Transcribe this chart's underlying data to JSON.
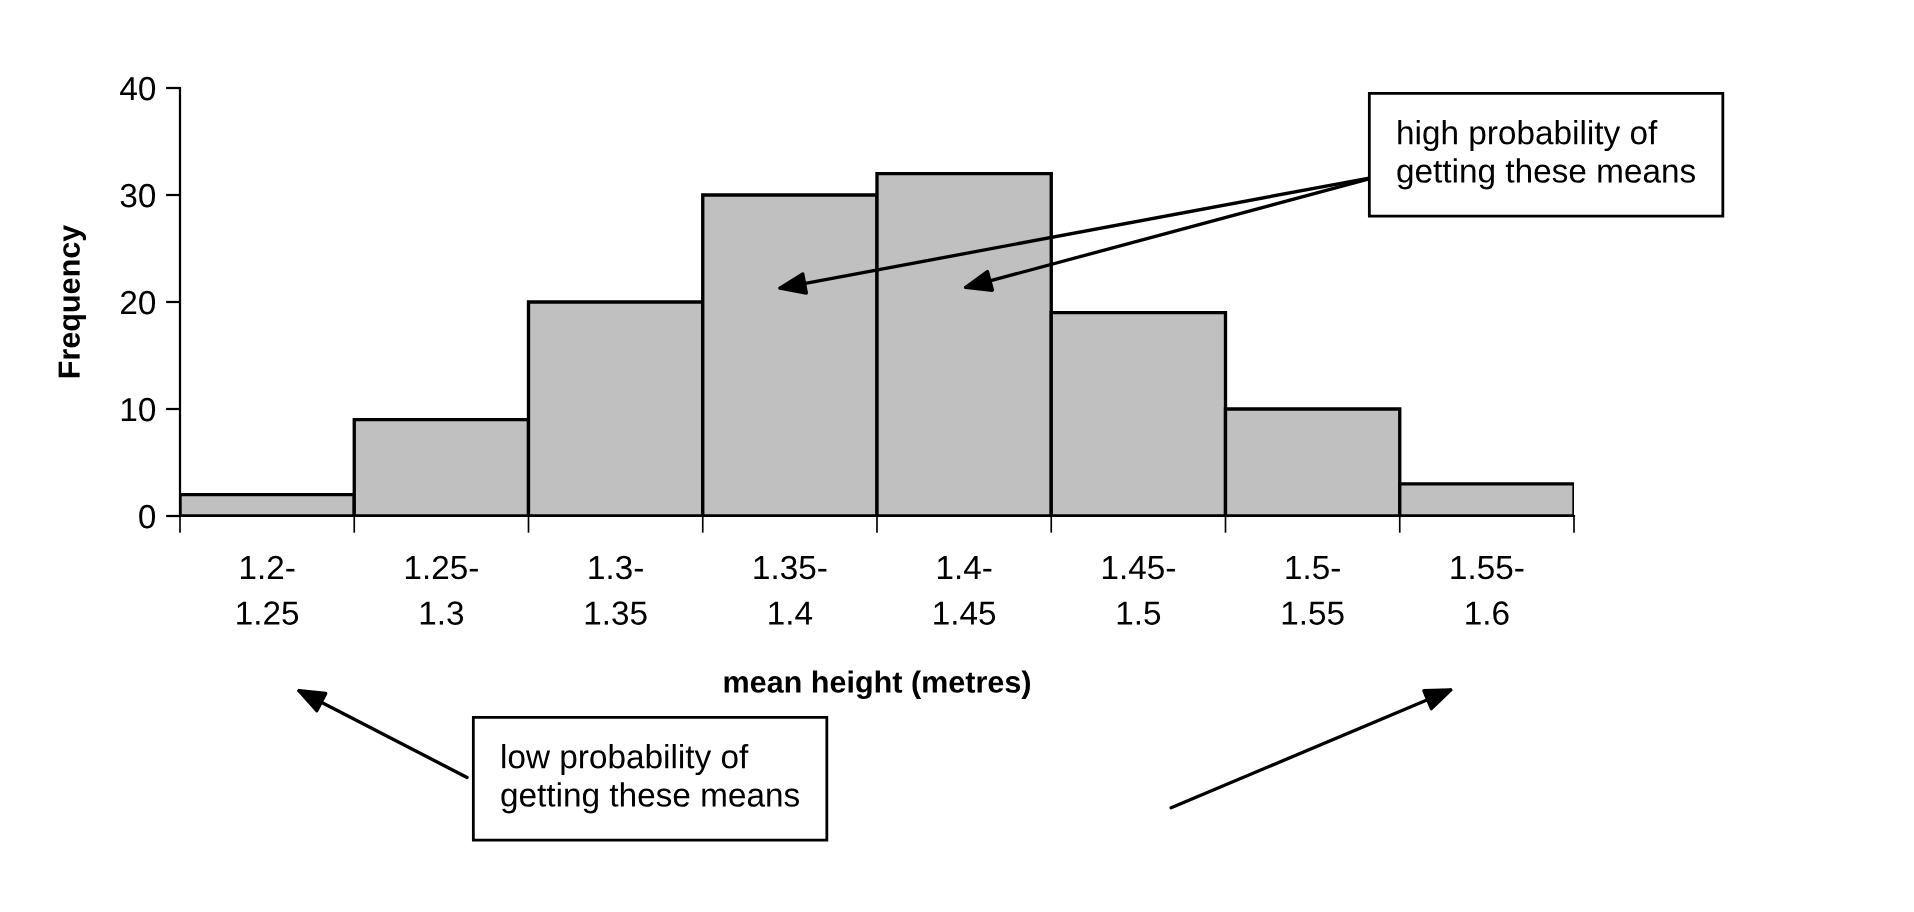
{
  "chart_data": {
    "type": "bar",
    "categories": [
      "1.2-\n1.25",
      "1.25-\n1.3",
      "1.3-\n1.35",
      "1.35-\n1.4",
      "1.4-\n1.45",
      "1.45-\n1.5",
      "1.5-\n1.55",
      "1.55-\n1.6"
    ],
    "values": [
      2,
      9,
      20,
      30,
      32,
      19,
      10,
      3
    ],
    "color": "#c0c0c0",
    "xlabel": "mean height (metres)",
    "ylabel": "Frequency",
    "ylim": [
      0,
      40
    ],
    "yticks": [
      0,
      10,
      20,
      30,
      40
    ],
    "grid": false,
    "annotations": [
      "high probability of\ngetting these means",
      "low probability of\ngetting these means"
    ]
  }
}
